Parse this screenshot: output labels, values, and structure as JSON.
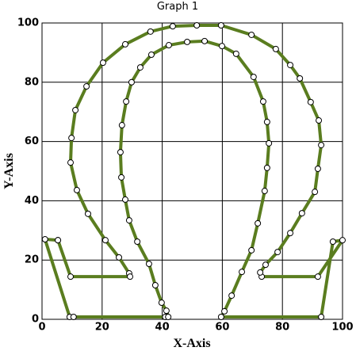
{
  "chart_data": {
    "type": "line",
    "title": "Graph 1",
    "x_label": "X-Axis",
    "y_label": "Y-Axis",
    "x": [
      5.3,
      1,
      9.2,
      10.5,
      41,
      42,
      41.4,
      39.8,
      37.7,
      35.6,
      31.7,
      29,
      27.7,
      26.4,
      26.1,
      26.6,
      28,
      29.8,
      32.7,
      36.4,
      42.2,
      48.3,
      54.1,
      59.9,
      64.6,
      70.4,
      73.6,
      74.9,
      75.5,
      74.9,
      74.1,
      71.8,
      69.7,
      66.5,
      63.1,
      60.7,
      59.6,
      92.9,
      96.8,
      100,
      91.8,
      73.1,
      72.6,
      74.4,
      78.4,
      82.6,
      86.5,
      90.8,
      91.8,
      92.9,
      92.1,
      89.4,
      85.8,
      82.6,
      77.8,
      69.7,
      59.6,
      51.5,
      43.5,
      36.1,
      27.7,
      20.3,
      14.8,
      11.1,
      9.8,
      9.5,
      11.6,
      15.3,
      21.1,
      25.6,
      29,
      29.3,
      9.5,
      5.3
    ],
    "series": [
      {
        "color": "#5a7d1f",
        "values": [
          26.7,
          27,
          0.8,
          0.8,
          0.8,
          0.8,
          2.9,
          5.6,
          11.5,
          18.7,
          26.2,
          33.4,
          40.4,
          47.9,
          56.4,
          65.5,
          73.5,
          80,
          85,
          89.3,
          92.5,
          93.6,
          93.9,
          92.2,
          89.6,
          81.8,
          73.5,
          66.6,
          59.4,
          51.1,
          43.3,
          32.4,
          23.3,
          16,
          8,
          2.7,
          0.8,
          0.8,
          26.2,
          26.7,
          14.4,
          14.4,
          15.8,
          18.4,
          22.7,
          29.1,
          35.8,
          43,
          50.8,
          58.8,
          67.1,
          73.3,
          81.3,
          85.8,
          91.2,
          96,
          99.2,
          99.2,
          98.9,
          97.1,
          92.8,
          86.6,
          78.6,
          70.6,
          61.2,
          52.9,
          43.6,
          35.6,
          26.7,
          20.9,
          15.5,
          14.4,
          14.4,
          26.7
        ]
      }
    ],
    "xlim": [
      0,
      100
    ],
    "ylim": [
      0,
      100
    ],
    "xticks": [
      0,
      20,
      40,
      60,
      80,
      100
    ],
    "yticks": [
      0,
      20,
      40,
      60,
      80,
      100
    ],
    "grid": true
  }
}
